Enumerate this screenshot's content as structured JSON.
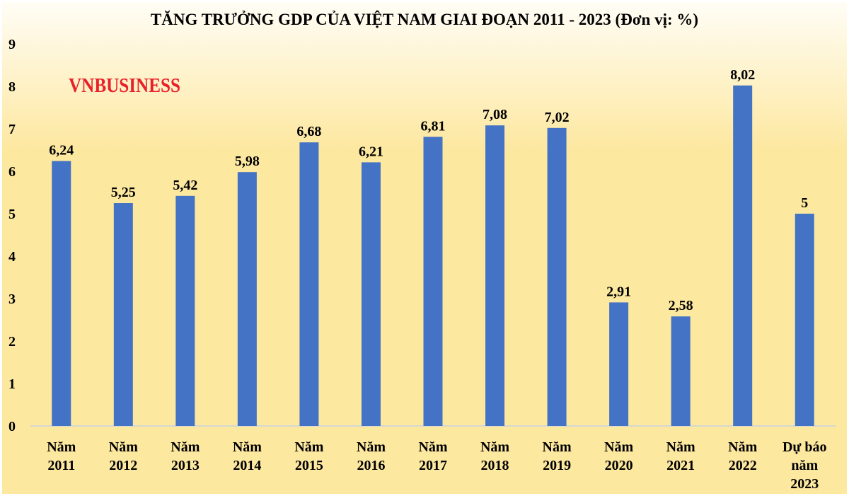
{
  "chart_data": {
    "type": "bar",
    "title": "TĂNG TRƯỞNG GDP CỦA VIỆT NAM GIAI ĐOẠN 2011 - 2023 (Đơn vị: %)",
    "watermark": "VNBUSINESS",
    "categories": [
      [
        "Năm",
        "2011"
      ],
      [
        "Năm",
        "2012"
      ],
      [
        "Năm",
        "2013"
      ],
      [
        "Năm",
        "2014"
      ],
      [
        "Năm",
        "2015"
      ],
      [
        "Năm",
        "2016"
      ],
      [
        "Năm",
        "2017"
      ],
      [
        "Năm",
        "2018"
      ],
      [
        "Năm",
        "2019"
      ],
      [
        "Năm",
        "2020"
      ],
      [
        "Năm",
        "2021"
      ],
      [
        "Năm",
        "2022"
      ],
      [
        "Dự báo",
        "năm",
        "2023"
      ]
    ],
    "values": [
      6.24,
      5.25,
      5.42,
      5.98,
      6.68,
      6.21,
      6.81,
      7.08,
      7.02,
      2.91,
      2.58,
      8.02,
      5
    ],
    "data_labels": [
      "6,24",
      "5,25",
      "5,42",
      "5,98",
      "6,68",
      "6,21",
      "6,81",
      "7,08",
      "7,02",
      "2,91",
      "2,58",
      "8,02",
      "5"
    ],
    "ylim": [
      0,
      9
    ],
    "yticks": [
      "0",
      "1",
      "2",
      "3",
      "4",
      "5",
      "6",
      "7",
      "8",
      "9"
    ],
    "xlabel": "",
    "ylabel": "",
    "grid": false,
    "legend": "none",
    "colors": {
      "bar": "#4472c4",
      "watermark": "#e8202a",
      "background_top": "#fffdf6",
      "background_bottom": "#fde8a0",
      "axis": "#c9d3df"
    }
  }
}
